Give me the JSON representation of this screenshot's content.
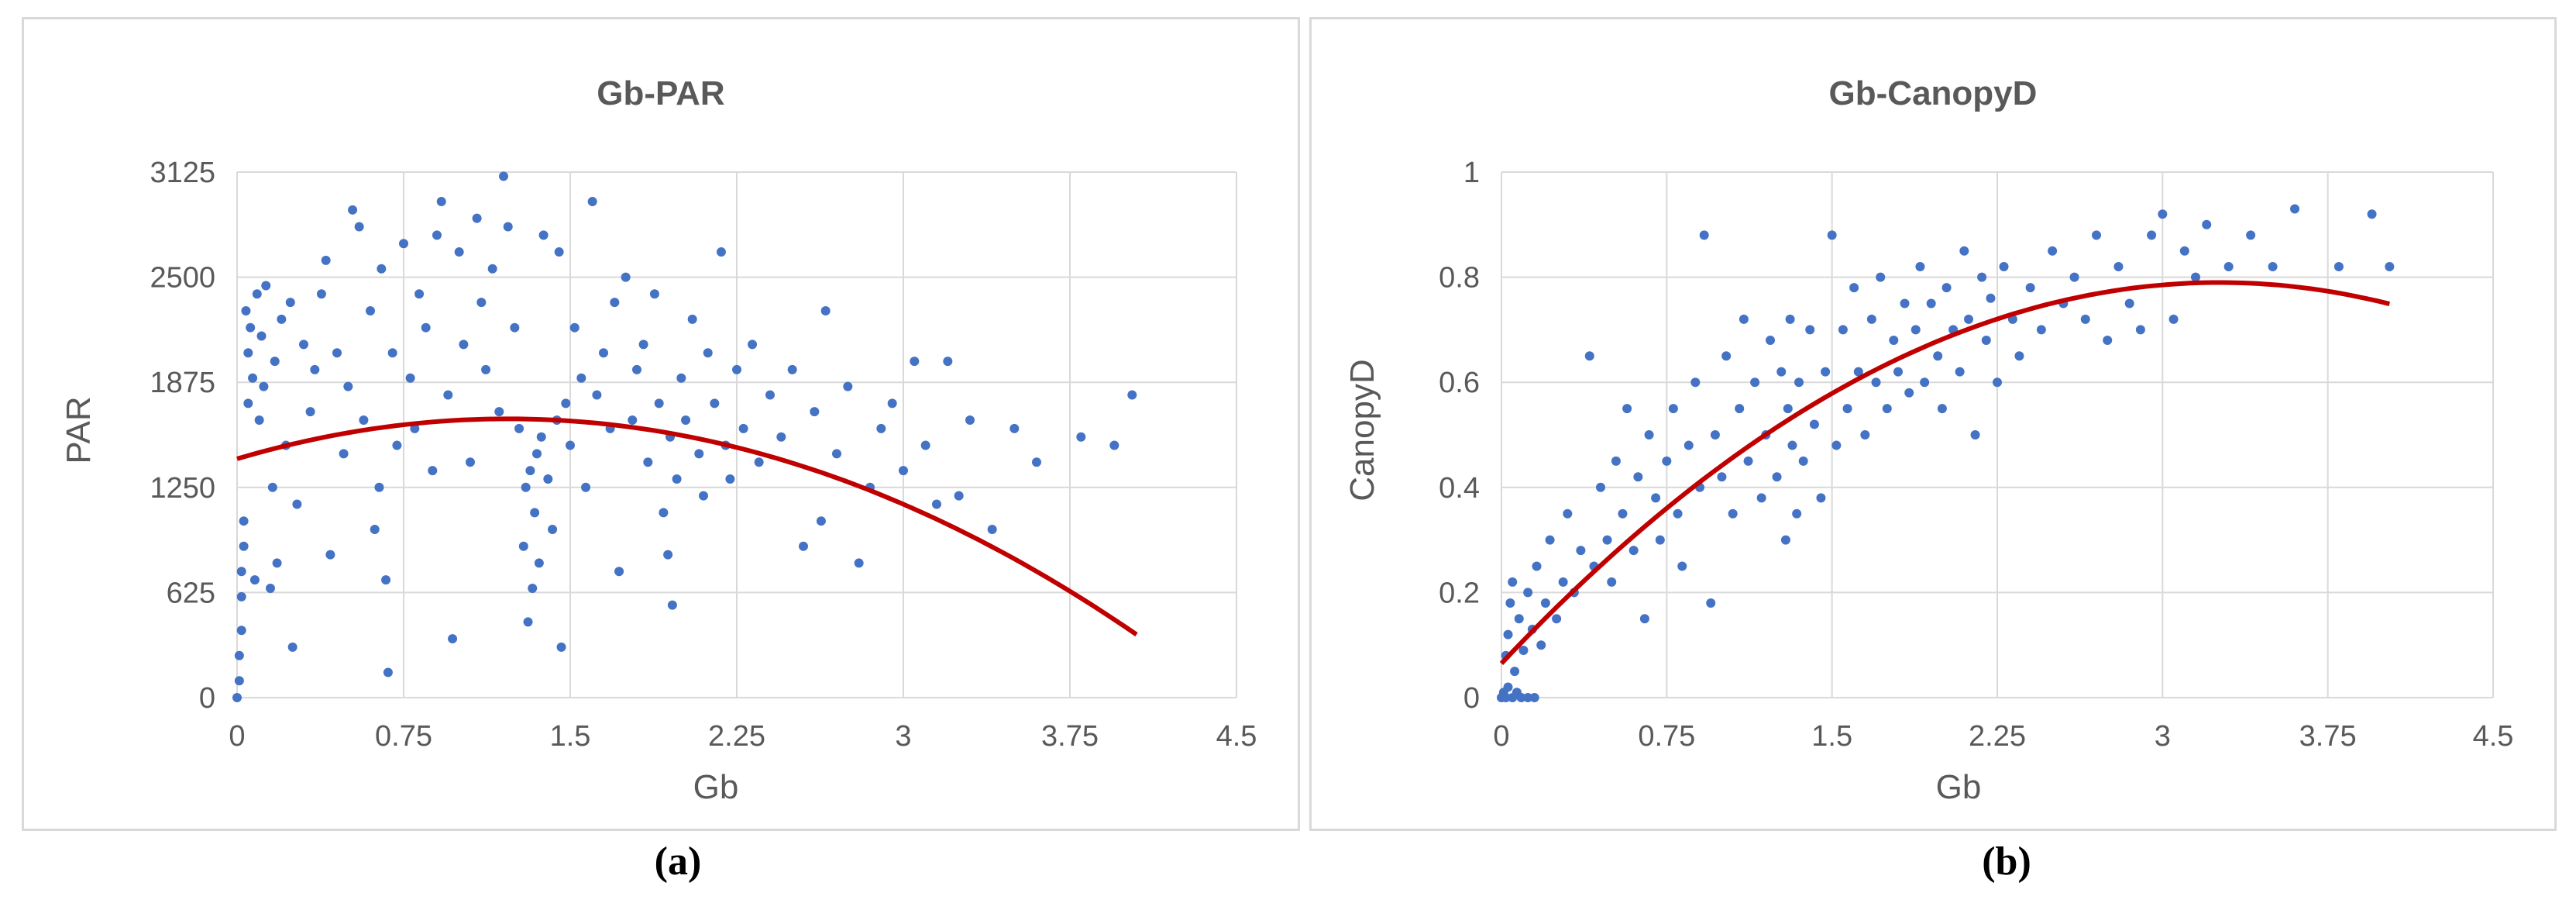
{
  "chart_data": [
    {
      "type": "scatter",
      "title": "Gb-PAR",
      "xlabel": "Gb",
      "ylabel": "PAR",
      "xlim": [
        0,
        4.5
      ],
      "ylim": [
        0,
        3125
      ],
      "x_ticks": [
        "0",
        "0.75",
        "1.5",
        "2.25",
        "3",
        "3.75",
        "4.5"
      ],
      "y_ticks": [
        "0",
        "625",
        "1250",
        "1875",
        "2500",
        "3125"
      ],
      "grid": true,
      "point_color": "#4472c4",
      "trend_color": "#c00000",
      "trendline": {
        "type": "polynomial",
        "degree": 2,
        "x_range": [
          0,
          4.05
        ],
        "coefficients": [
          1420,
          390,
          -160
        ]
      },
      "points": [
        [
          0.0,
          0
        ],
        [
          0.01,
          100
        ],
        [
          0.01,
          250
        ],
        [
          0.02,
          400
        ],
        [
          0.02,
          600
        ],
        [
          0.02,
          750
        ],
        [
          0.03,
          900
        ],
        [
          0.03,
          1050
        ],
        [
          0.04,
          2300
        ],
        [
          0.05,
          2050
        ],
        [
          0.05,
          1750
        ],
        [
          0.06,
          2200
        ],
        [
          0.07,
          1900
        ],
        [
          0.08,
          700
        ],
        [
          0.09,
          2400
        ],
        [
          0.1,
          1650
        ],
        [
          0.11,
          2150
        ],
        [
          0.12,
          1850
        ],
        [
          0.13,
          2450
        ],
        [
          0.15,
          650
        ],
        [
          0.16,
          1250
        ],
        [
          0.17,
          2000
        ],
        [
          0.18,
          800
        ],
        [
          0.2,
          2250
        ],
        [
          0.22,
          1500
        ],
        [
          0.24,
          2350
        ],
        [
          0.25,
          300
        ],
        [
          0.27,
          1150
        ],
        [
          0.3,
          2100
        ],
        [
          0.33,
          1700
        ],
        [
          0.35,
          1950
        ],
        [
          0.38,
          2400
        ],
        [
          0.4,
          2600
        ],
        [
          0.42,
          850
        ],
        [
          0.45,
          2050
        ],
        [
          0.48,
          1450
        ],
        [
          0.5,
          1850
        ],
        [
          0.52,
          2900
        ],
        [
          0.55,
          2800
        ],
        [
          0.57,
          1650
        ],
        [
          0.6,
          2300
        ],
        [
          0.62,
          1000
        ],
        [
          0.64,
          1250
        ],
        [
          0.65,
          2550
        ],
        [
          0.67,
          700
        ],
        [
          0.68,
          150
        ],
        [
          0.7,
          2050
        ],
        [
          0.72,
          1500
        ],
        [
          0.75,
          2700
        ],
        [
          0.78,
          1900
        ],
        [
          0.8,
          1600
        ],
        [
          0.82,
          2400
        ],
        [
          0.85,
          2200
        ],
        [
          0.88,
          1350
        ],
        [
          0.9,
          2750
        ],
        [
          0.92,
          2950
        ],
        [
          0.95,
          1800
        ],
        [
          0.97,
          350
        ],
        [
          1.0,
          2650
        ],
        [
          1.02,
          2100
        ],
        [
          1.05,
          1400
        ],
        [
          1.08,
          2850
        ],
        [
          1.1,
          2350
        ],
        [
          1.12,
          1950
        ],
        [
          1.15,
          2550
        ],
        [
          1.18,
          1700
        ],
        [
          1.2,
          3100
        ],
        [
          1.22,
          2800
        ],
        [
          1.25,
          2200
        ],
        [
          1.27,
          1600
        ],
        [
          1.29,
          900
        ],
        [
          1.3,
          1250
        ],
        [
          1.31,
          450
        ],
        [
          1.32,
          1350
        ],
        [
          1.33,
          650
        ],
        [
          1.34,
          1100
        ],
        [
          1.35,
          1450
        ],
        [
          1.36,
          800
        ],
        [
          1.37,
          1550
        ],
        [
          1.38,
          2750
        ],
        [
          1.4,
          1300
        ],
        [
          1.42,
          1000
        ],
        [
          1.44,
          1650
        ],
        [
          1.45,
          2650
        ],
        [
          1.46,
          300
        ],
        [
          1.48,
          1750
        ],
        [
          1.5,
          1500
        ],
        [
          1.52,
          2200
        ],
        [
          1.55,
          1900
        ],
        [
          1.57,
          1250
        ],
        [
          1.6,
          2950
        ],
        [
          1.62,
          1800
        ],
        [
          1.65,
          2050
        ],
        [
          1.68,
          1600
        ],
        [
          1.7,
          2350
        ],
        [
          1.72,
          750
        ],
        [
          1.75,
          2500
        ],
        [
          1.78,
          1650
        ],
        [
          1.8,
          1950
        ],
        [
          1.83,
          2100
        ],
        [
          1.85,
          1400
        ],
        [
          1.88,
          2400
        ],
        [
          1.9,
          1750
        ],
        [
          1.92,
          1100
        ],
        [
          1.94,
          850
        ],
        [
          1.95,
          1550
        ],
        [
          1.96,
          550
        ],
        [
          1.98,
          1300
        ],
        [
          2.0,
          1900
        ],
        [
          2.02,
          1650
        ],
        [
          2.05,
          2250
        ],
        [
          2.08,
          1450
        ],
        [
          2.1,
          1200
        ],
        [
          2.12,
          2050
        ],
        [
          2.15,
          1750
        ],
        [
          2.18,
          2650
        ],
        [
          2.2,
          1500
        ],
        [
          2.22,
          1300
        ],
        [
          2.25,
          1950
        ],
        [
          2.28,
          1600
        ],
        [
          2.32,
          2100
        ],
        [
          2.35,
          1400
        ],
        [
          2.4,
          1800
        ],
        [
          2.45,
          1550
        ],
        [
          2.5,
          1950
        ],
        [
          2.55,
          900
        ],
        [
          2.6,
          1700
        ],
        [
          2.63,
          1050
        ],
        [
          2.65,
          2300
        ],
        [
          2.7,
          1450
        ],
        [
          2.75,
          1850
        ],
        [
          2.8,
          800
        ],
        [
          2.85,
          1250
        ],
        [
          2.9,
          1600
        ],
        [
          2.95,
          1750
        ],
        [
          3.0,
          1350
        ],
        [
          3.05,
          2000
        ],
        [
          3.1,
          1500
        ],
        [
          3.15,
          1150
        ],
        [
          3.2,
          2000
        ],
        [
          3.25,
          1200
        ],
        [
          3.3,
          1650
        ],
        [
          3.4,
          1000
        ],
        [
          3.5,
          1600
        ],
        [
          3.6,
          1400
        ],
        [
          3.8,
          1550
        ],
        [
          3.95,
          1500
        ],
        [
          4.03,
          1800
        ]
      ]
    },
    {
      "type": "scatter",
      "title": "Gb-CanopyD",
      "xlabel": "Gb",
      "ylabel": "CanopyD",
      "xlim": [
        0,
        4.5
      ],
      "ylim": [
        0,
        1
      ],
      "x_ticks": [
        "0",
        "0.75",
        "1.5",
        "2.25",
        "3",
        "3.75",
        "4.5"
      ],
      "y_ticks": [
        "0",
        "0.2",
        "0.4",
        "0.6",
        "0.8",
        "1"
      ],
      "grid": true,
      "point_color": "#4472c4",
      "trend_color": "#c00000",
      "trendline": {
        "type": "polynomial",
        "degree": 2,
        "x_range": [
          0,
          4.03
        ],
        "coefficients": [
          0.065,
          0.445,
          -0.0683
        ]
      },
      "points": [
        [
          0.0,
          0.0
        ],
        [
          0.01,
          0.01
        ],
        [
          0.02,
          0.0
        ],
        [
          0.03,
          0.02
        ],
        [
          0.05,
          0.0
        ],
        [
          0.07,
          0.01
        ],
        [
          0.09,
          0.0
        ],
        [
          0.12,
          0.0
        ],
        [
          0.15,
          0.0
        ],
        [
          0.02,
          0.08
        ],
        [
          0.03,
          0.12
        ],
        [
          0.04,
          0.18
        ],
        [
          0.05,
          0.22
        ],
        [
          0.06,
          0.05
        ],
        [
          0.08,
          0.15
        ],
        [
          0.1,
          0.09
        ],
        [
          0.12,
          0.2
        ],
        [
          0.14,
          0.13
        ],
        [
          0.16,
          0.25
        ],
        [
          0.18,
          0.1
        ],
        [
          0.2,
          0.18
        ],
        [
          0.22,
          0.3
        ],
        [
          0.25,
          0.15
        ],
        [
          0.28,
          0.22
        ],
        [
          0.3,
          0.35
        ],
        [
          0.33,
          0.2
        ],
        [
          0.36,
          0.28
        ],
        [
          0.4,
          0.65
        ],
        [
          0.42,
          0.25
        ],
        [
          0.45,
          0.4
        ],
        [
          0.48,
          0.3
        ],
        [
          0.5,
          0.22
        ],
        [
          0.52,
          0.45
        ],
        [
          0.55,
          0.35
        ],
        [
          0.57,
          0.55
        ],
        [
          0.6,
          0.28
        ],
        [
          0.62,
          0.42
        ],
        [
          0.65,
          0.15
        ],
        [
          0.67,
          0.5
        ],
        [
          0.7,
          0.38
        ],
        [
          0.72,
          0.3
        ],
        [
          0.75,
          0.45
        ],
        [
          0.78,
          0.55
        ],
        [
          0.8,
          0.35
        ],
        [
          0.82,
          0.25
        ],
        [
          0.85,
          0.48
        ],
        [
          0.88,
          0.6
        ],
        [
          0.9,
          0.4
        ],
        [
          0.92,
          0.88
        ],
        [
          0.95,
          0.18
        ],
        [
          0.97,
          0.5
        ],
        [
          1.0,
          0.42
        ],
        [
          1.02,
          0.65
        ],
        [
          1.05,
          0.35
        ],
        [
          1.08,
          0.55
        ],
        [
          1.1,
          0.72
        ],
        [
          1.12,
          0.45
        ],
        [
          1.15,
          0.6
        ],
        [
          1.18,
          0.38
        ],
        [
          1.2,
          0.5
        ],
        [
          1.22,
          0.68
        ],
        [
          1.25,
          0.42
        ],
        [
          1.27,
          0.62
        ],
        [
          1.29,
          0.3
        ],
        [
          1.3,
          0.55
        ],
        [
          1.31,
          0.72
        ],
        [
          1.32,
          0.48
        ],
        [
          1.34,
          0.35
        ],
        [
          1.35,
          0.6
        ],
        [
          1.37,
          0.45
        ],
        [
          1.4,
          0.7
        ],
        [
          1.42,
          0.52
        ],
        [
          1.45,
          0.38
        ],
        [
          1.47,
          0.62
        ],
        [
          1.5,
          0.88
        ],
        [
          1.52,
          0.48
        ],
        [
          1.55,
          0.7
        ],
        [
          1.57,
          0.55
        ],
        [
          1.6,
          0.78
        ],
        [
          1.62,
          0.62
        ],
        [
          1.65,
          0.5
        ],
        [
          1.68,
          0.72
        ],
        [
          1.7,
          0.6
        ],
        [
          1.72,
          0.8
        ],
        [
          1.75,
          0.55
        ],
        [
          1.78,
          0.68
        ],
        [
          1.8,
          0.62
        ],
        [
          1.83,
          0.75
        ],
        [
          1.85,
          0.58
        ],
        [
          1.88,
          0.7
        ],
        [
          1.9,
          0.82
        ],
        [
          1.92,
          0.6
        ],
        [
          1.95,
          0.75
        ],
        [
          1.98,
          0.65
        ],
        [
          2.0,
          0.55
        ],
        [
          2.02,
          0.78
        ],
        [
          2.05,
          0.7
        ],
        [
          2.08,
          0.62
        ],
        [
          2.1,
          0.85
        ],
        [
          2.12,
          0.72
        ],
        [
          2.15,
          0.5
        ],
        [
          2.18,
          0.8
        ],
        [
          2.2,
          0.68
        ],
        [
          2.22,
          0.76
        ],
        [
          2.25,
          0.6
        ],
        [
          2.28,
          0.82
        ],
        [
          2.32,
          0.72
        ],
        [
          2.35,
          0.65
        ],
        [
          2.4,
          0.78
        ],
        [
          2.45,
          0.7
        ],
        [
          2.5,
          0.85
        ],
        [
          2.55,
          0.75
        ],
        [
          2.6,
          0.8
        ],
        [
          2.65,
          0.72
        ],
        [
          2.7,
          0.88
        ],
        [
          2.75,
          0.68
        ],
        [
          2.8,
          0.82
        ],
        [
          2.85,
          0.75
        ],
        [
          2.9,
          0.7
        ],
        [
          2.95,
          0.88
        ],
        [
          3.0,
          0.92
        ],
        [
          3.05,
          0.72
        ],
        [
          3.1,
          0.85
        ],
        [
          3.15,
          0.8
        ],
        [
          3.2,
          0.9
        ],
        [
          3.3,
          0.82
        ],
        [
          3.4,
          0.88
        ],
        [
          3.5,
          0.82
        ],
        [
          3.6,
          0.93
        ],
        [
          3.8,
          0.82
        ],
        [
          3.95,
          0.92
        ],
        [
          4.03,
          0.82
        ]
      ]
    }
  ],
  "captions": {
    "a": "(a)",
    "b": "(b)"
  }
}
